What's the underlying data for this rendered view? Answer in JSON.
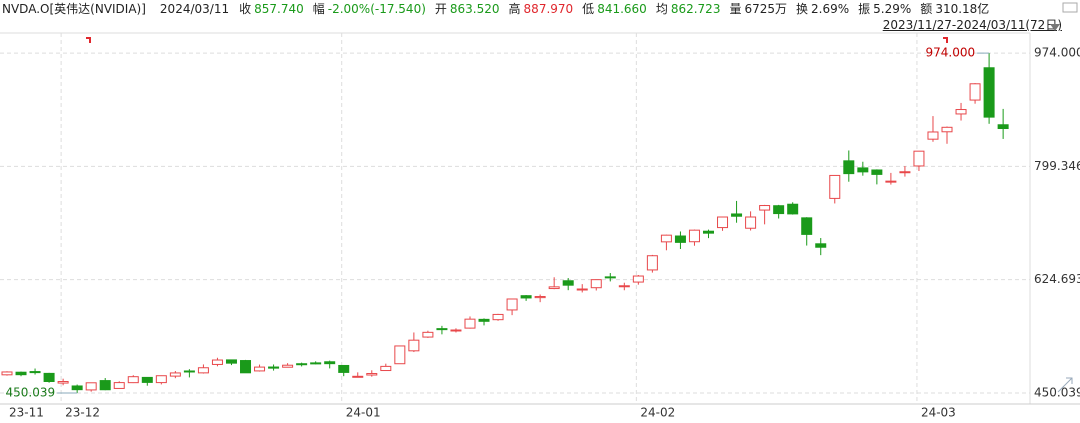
{
  "header": {
    "symbol": "NVDA.O[英伟达(NVIDIA)]",
    "date": "2024/03/11",
    "fields": [
      {
        "label": "收",
        "value": "857.740",
        "color": "#1a9a1a"
      },
      {
        "label": "幅",
        "value": "-2.00%(-17.540)",
        "color": "#1a9a1a"
      },
      {
        "label": "开",
        "value": "863.520",
        "color": "#1a9a1a"
      },
      {
        "label": "高",
        "value": "887.970",
        "color": "#e0272d"
      },
      {
        "label": "低",
        "value": "841.660",
        "color": "#1a9a1a"
      },
      {
        "label": "均",
        "value": "862.723",
        "color": "#1a9a1a"
      },
      {
        "label": "量",
        "value": "6725万",
        "color": "#222222"
      },
      {
        "label": "换",
        "value": "2.69%",
        "color": "#222222"
      },
      {
        "label": "振",
        "value": "5.29%",
        "color": "#222222"
      },
      {
        "label": "额",
        "value": "310.18亿",
        "color": "#222222"
      }
    ],
    "range": "2023/11/27-2024/03/11(72日)"
  },
  "chart_data": {
    "type": "candlestick",
    "categories": [
      "23-11",
      null,
      null,
      null,
      "23-12",
      null,
      null,
      null,
      null,
      null,
      null,
      null,
      null,
      null,
      null,
      null,
      null,
      null,
      null,
      null,
      null,
      null,
      null,
      null,
      "24-01",
      null,
      null,
      null,
      null,
      null,
      null,
      null,
      null,
      null,
      null,
      null,
      null,
      null,
      null,
      null,
      null,
      null,
      null,
      null,
      null,
      "24-02",
      null,
      null,
      null,
      null,
      null,
      null,
      null,
      null,
      null,
      null,
      null,
      null,
      null,
      null,
      null,
      null,
      null,
      null,
      null,
      "24-03",
      null,
      null,
      null,
      null,
      null,
      null
    ],
    "open": [
      478.0,
      482.0,
      483.0,
      480.2,
      465.3,
      460.8,
      454.7,
      469.1,
      457.0,
      465.9,
      474.0,
      466.0,
      476.0,
      483.9,
      481.0,
      494.0,
      501.0,
      500.0,
      484.0,
      490.0,
      489.7,
      495.1,
      496.4,
      498.1,
      492.4,
      474.9,
      477.7,
      484.6,
      495.1,
      515.0,
      536.2,
      549.2,
      546.2,
      550.0,
      563.5,
      563.0,
      578.0,
      600.0,
      597.0,
      611.0,
      623.0,
      609.6,
      612.3,
      629.0,
      614.0,
      621.0,
      639.7,
      683.0,
      692.0,
      683.2,
      699.4,
      705.0,
      726.0,
      704.0,
      732.0,
      738.7,
      741.0,
      720.0,
      680.0,
      750.0,
      807.9,
      797.0,
      793.8,
      776.2,
      790.9,
      800.0,
      841.3,
      852.7,
      880.2,
      901.6,
      951.4,
      863.52
    ],
    "high": [
      483.4,
      483.0,
      487.7,
      481.0,
      472.0,
      463.0,
      466.0,
      473.0,
      468.0,
      477.4,
      474.2,
      477.0,
      483.9,
      486.7,
      494.0,
      504.3,
      501.0,
      501.0,
      493.8,
      493.9,
      496.0,
      496.8,
      498.8,
      499.9,
      492.9,
      481.8,
      485.0,
      495.2,
      522.8,
      543.3,
      546.0,
      553.5,
      549.7,
      568.0,
      565.0,
      572.0,
      595.0,
      601.0,
      601.8,
      628.4,
      627.2,
      617.8,
      624.9,
      634.9,
      620.0,
      631.9,
      662.9,
      694.0,
      699.0,
      702.0,
      701.9,
      722.0,
      746.1,
      730.0,
      740.0,
      740.0,
      744.0,
      721.0,
      688.9,
      785.8,
      823.9,
      806.5,
      794.8,
      789.3,
      799.9,
      823.0,
      876.9,
      860.9,
      897.2,
      927.7,
      974.0,
      887.97
    ],
    "low": [
      476.7,
      475.8,
      478.4,
      465.8,
      461.9,
      450.039,
      452.0,
      454.3,
      456.8,
      465.3,
      461.2,
      463.2,
      472.8,
      474.0,
      479.9,
      491.1,
      493.0,
      481.1,
      483.0,
      484.5,
      489.6,
      490.9,
      494.1,
      487.9,
      475.9,
      474.0,
      475.1,
      484.0,
      494.8,
      513.1,
      534.9,
      540.4,
      543.3,
      549.2,
      554.2,
      561.3,
      570.0,
      592.0,
      590.0,
      610.0,
      608.5,
      605.0,
      608.0,
      622.0,
      608.4,
      617.0,
      635.6,
      670.0,
      672.0,
      677.0,
      688.8,
      700.0,
      712.5,
      700.5,
      710.0,
      719.0,
      725.0,
      677.3,
      662.5,
      742.2,
      775.7,
      785.0,
      771.6,
      771.3,
      783.6,
      792.3,
      837.3,
      834.2,
      870.0,
      896.0,
      865.0,
      841.66
    ],
    "close": [
      482.4,
      478.2,
      481.4,
      467.7,
      467.7,
      455.1,
      465.7,
      455.0,
      466.0,
      475.1,
      466.3,
      476.6,
      480.9,
      483.5,
      488.9,
      500.8,
      496.0,
      481.1,
      489.9,
      488.3,
      492.8,
      494.2,
      495.2,
      495.2,
      481.7,
      475.7,
      480.0,
      491.0,
      522.5,
      531.4,
      543.5,
      548.2,
      547.1,
      563.8,
      560.5,
      571.1,
      594.9,
      596.5,
      598.7,
      613.6,
      616.2,
      610.3,
      624.7,
      627.7,
      615.3,
      630.3,
      661.6,
      693.3,
      682.2,
      701.0,
      696.4,
      721.3,
      722.5,
      721.3,
      739.0,
      726.6,
      726.1,
      694.5,
      674.7,
      785.4,
      788.2,
      790.9,
      787.0,
      776.6,
      791.1,
      822.8,
      852.4,
      859.6,
      887.0,
      926.7,
      875.3,
      857.74
    ],
    "up_color": "#e8474a",
    "down_color": "#1a9a1a",
    "ylim": [
      433,
      1005
    ],
    "yticks": [
      450.039,
      624.693,
      799.346,
      {
        "value": 974,
        "label": "974.000"
      }
    ],
    "annotations": [
      {
        "value": 974,
        "label": "974.000",
        "color": "#c00000"
      },
      {
        "value": 450.039,
        "label": "450.039",
        "color": "#1a7a1a"
      }
    ],
    "grid": true
  }
}
